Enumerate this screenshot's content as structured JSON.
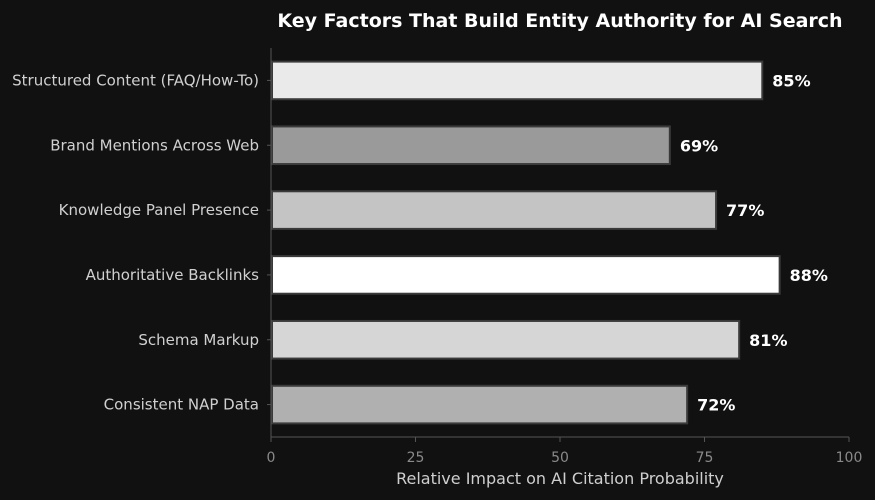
{
  "chart_data": {
    "type": "bar",
    "orientation": "horizontal",
    "title": "Key Factors That Build Entity Authority for AI Search",
    "xlabel": "Relative Impact on AI Citation Probability",
    "ylabel": "",
    "xlim": [
      0,
      100
    ],
    "xticks": [
      0,
      25,
      50,
      75,
      100
    ],
    "grid": false,
    "categories": [
      "Structured Content (FAQ/How-To)",
      "Brand Mentions Across Web",
      "Knowledge Panel Presence",
      "Authoritative Backlinks",
      "Schema Markup",
      "Consistent NAP Data"
    ],
    "values": [
      85,
      69,
      77,
      88,
      81,
      72
    ],
    "value_labels": [
      "85%",
      "69%",
      "77%",
      "88%",
      "81%",
      "72%"
    ],
    "bar_colors": [
      "#eaeaea",
      "#9a9a9a",
      "#c4c4c4",
      "#ffffff",
      "#d6d6d6",
      "#b0b0b0"
    ],
    "background_color": "#111111",
    "text_color": "#ffffff"
  }
}
